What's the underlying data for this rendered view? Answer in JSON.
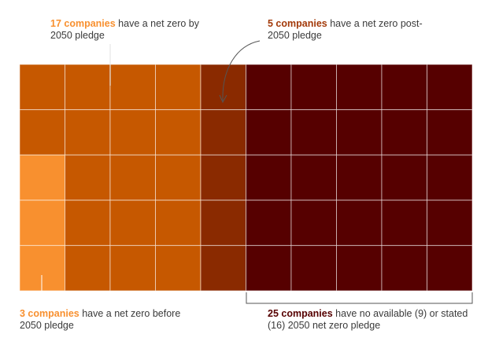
{
  "chart_data": {
    "type": "waffle",
    "total_companies": 50,
    "grid": {
      "rows": 5,
      "cols": 10
    },
    "categories": [
      {
        "key": "before_2050",
        "count": 3,
        "color": "#f8902f"
      },
      {
        "key": "by_2050",
        "count": 17,
        "color": "#c65800"
      },
      {
        "key": "post_2050",
        "count": 5,
        "color": "#8a2a00"
      },
      {
        "key": "none",
        "count": 25,
        "color": "#560000"
      }
    ],
    "annotations": {
      "by_2050": {
        "highlight": "17 companies",
        "text": " have a net zero by 2050 pledge",
        "highlight_color": "#f8902f"
      },
      "post_2050": {
        "highlight": "5 companies",
        "text": " have a net zero post-2050 pledge",
        "highlight_color": "#a33a0a"
      },
      "before_2050": {
        "highlight": "3 companies",
        "text": " have a net zero before 2050 pledge",
        "highlight_color": "#f8902f"
      },
      "none": {
        "highlight": "25 companies",
        "text": " have no available (9) or stated (16) 2050 net zero pledge",
        "highlight_color": "#560000"
      }
    }
  }
}
